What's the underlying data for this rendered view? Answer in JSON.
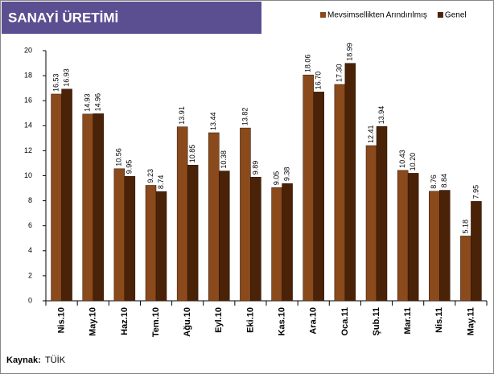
{
  "chart_data": {
    "type": "bar",
    "title": "SANAYİ ÜRETİMİ",
    "categories": [
      "Nis.10",
      "May.10",
      "Haz.10",
      "Tem.10",
      "Ağu.10",
      "Eyl.10",
      "Eki.10",
      "Kas.10",
      "Ara.10",
      "Oca.11",
      "Şub.11",
      "Mar.11",
      "Nis.11",
      "May.11"
    ],
    "series": [
      {
        "name": "Mevsimsellikten Arındırılmış",
        "color": "#8a4a1c",
        "values": [
          16.53,
          14.93,
          10.56,
          9.23,
          13.91,
          13.44,
          13.82,
          9.05,
          18.06,
          17.3,
          12.41,
          10.43,
          8.76,
          5.18
        ],
        "value_labels": [
          "16.53",
          "14.93",
          "10.56",
          "9.23",
          "13.91",
          "13.44",
          "13.82",
          "9.05",
          "18.06",
          "17.30",
          "12.41",
          "10.43",
          "8.76",
          "5.18"
        ]
      },
      {
        "name": "Genel",
        "color": "#4a2208",
        "values": [
          16.93,
          14.96,
          9.95,
          8.74,
          10.85,
          10.38,
          9.89,
          9.38,
          16.7,
          18.99,
          13.94,
          10.2,
          8.84,
          7.95
        ],
        "value_labels": [
          "16.93",
          "14.96",
          "9.95",
          "8.74",
          "10.85",
          "10.38",
          "9.89",
          "9.38",
          "16.70",
          "18.99",
          "13.94",
          "10.20",
          "8.84",
          "7.95"
        ]
      }
    ],
    "ylim": [
      0,
      20
    ],
    "yticks": [
      0,
      2,
      4,
      6,
      8,
      10,
      12,
      14,
      16,
      18,
      20
    ],
    "legend": "top-right",
    "source_label": "Kaynak:",
    "source": "TÜİK"
  }
}
